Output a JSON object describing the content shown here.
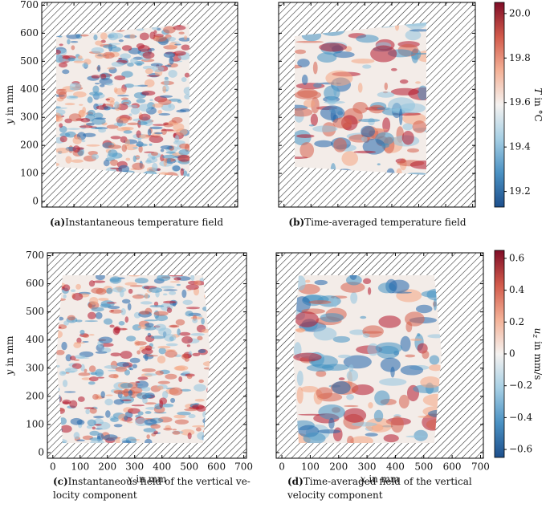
{
  "chart_data": [
    {
      "type": "heatmap",
      "label": "(a)",
      "caption": [
        "Instantaneous temperature field"
      ],
      "xlim": [
        -20,
        710
      ],
      "ylim": [
        -20,
        710
      ],
      "xticks": [
        0,
        100,
        200,
        300,
        400,
        500,
        600,
        700
      ],
      "xtick_labels": false,
      "yticks": [
        0,
        100,
        200,
        300,
        400,
        500,
        600,
        700
      ],
      "ytick_labels": true,
      "ylabel": {
        "symbol": "y",
        "unit": "in mm"
      }
    },
    {
      "type": "heatmap",
      "label": "(b)",
      "caption": [
        "Time-averaged temperature field"
      ],
      "xlim": [
        -20,
        710
      ],
      "ylim": [
        -20,
        710
      ],
      "xticks": [
        0,
        100,
        200,
        300,
        400,
        500,
        600,
        700
      ],
      "xtick_labels": false,
      "yticks": [
        0,
        100,
        200,
        300,
        400,
        500,
        600,
        700
      ],
      "ytick_labels": false,
      "colorbar": {
        "lim": [
          19.13,
          20.05
        ],
        "ticks": [
          19.2,
          19.4,
          19.6,
          19.8,
          {
            "value": 20,
            "label": "20.0"
          }
        ],
        "label": {
          "symbol": "T",
          "unit": "in °C"
        },
        "colormap": [
          "#1d4f8c",
          "#4a91c3",
          "#a6cfe4",
          "#f5f2f0",
          "#f4b197",
          "#d25a4b",
          "#7f0d27"
        ]
      }
    },
    {
      "type": "heatmap",
      "label": "(c)",
      "caption": [
        "Instantaneous field of the vertical ve-",
        "locity component"
      ],
      "xlim": [
        -20,
        710
      ],
      "ylim": [
        -20,
        710
      ],
      "xticks": [
        0,
        100,
        200,
        300,
        400,
        500,
        600,
        700
      ],
      "xtick_labels": true,
      "yticks": [
        0,
        100,
        200,
        300,
        400,
        500,
        600,
        700
      ],
      "ytick_labels": true,
      "xlabel": {
        "symbol": "x",
        "unit": "in mm"
      },
      "ylabel": {
        "symbol": "y",
        "unit": "in mm"
      }
    },
    {
      "type": "heatmap",
      "label": "(d)",
      "caption": [
        "Time-averaged field of the vertical",
        "velocity component"
      ],
      "xlim": [
        -20,
        710
      ],
      "ylim": [
        -20,
        710
      ],
      "xticks": [
        0,
        100,
        200,
        300,
        400,
        500,
        600,
        700
      ],
      "xtick_labels": true,
      "yticks": [
        0,
        100,
        200,
        300,
        400,
        500,
        600,
        700
      ],
      "ytick_labels": false,
      "xlabel": {
        "symbol": "x",
        "unit": "in mm"
      },
      "colorbar": {
        "lim": [
          -0.65,
          0.65
        ],
        "ticks": [
          {
            "value": -0.6,
            "label": "−0.6"
          },
          {
            "value": -0.4,
            "label": "−0.4"
          },
          {
            "value": -0.2,
            "label": "−0.2"
          },
          0,
          0.2,
          0.4,
          0.6
        ],
        "label": {
          "symbol": "u",
          "subscript": "z",
          "unit": "in mm/s"
        },
        "colormap": [
          "#1d4f8c",
          "#4a91c3",
          "#a6cfe4",
          "#f5f2f0",
          "#f4b197",
          "#d25a4b",
          "#7f0d27"
        ]
      }
    }
  ]
}
